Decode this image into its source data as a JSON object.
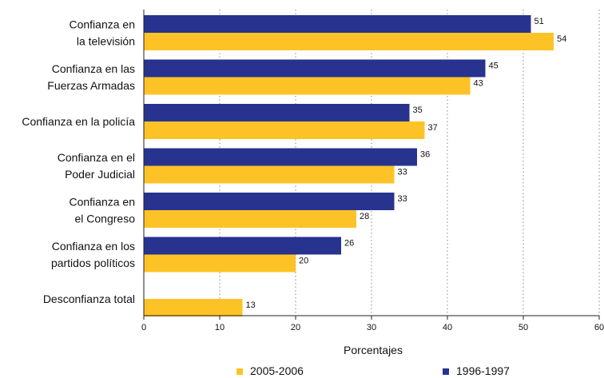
{
  "chart_data": {
    "type": "bar",
    "orientation": "horizontal",
    "categories": [
      [
        "Confianza en",
        "la televisión"
      ],
      [
        "Confianza en las",
        "Fuerzas Armadas"
      ],
      [
        "Confianza en la policía"
      ],
      [
        "Confianza en el",
        "Poder Judicial"
      ],
      [
        "Confianza en",
        "el Congreso"
      ],
      [
        "Confianza en los",
        "partidos políticos"
      ],
      [
        "Desconfianza total"
      ]
    ],
    "series": [
      {
        "name": "1996-1997",
        "color": "#28338f",
        "values": [
          51,
          45,
          35,
          36,
          33,
          26,
          null
        ]
      },
      {
        "name": "2005-2006",
        "color": "#fdc326",
        "values": [
          54,
          43,
          37,
          33,
          28,
          20,
          13
        ]
      }
    ],
    "xlabel": "Porcentajes",
    "xlim": [
      0,
      60
    ],
    "xticks": [
      0,
      10,
      20,
      30,
      40,
      50,
      60
    ],
    "grid": "vertical-dotted",
    "legend": {
      "position": "bottom",
      "order": [
        "2005-2006",
        "1996-1997"
      ]
    }
  }
}
